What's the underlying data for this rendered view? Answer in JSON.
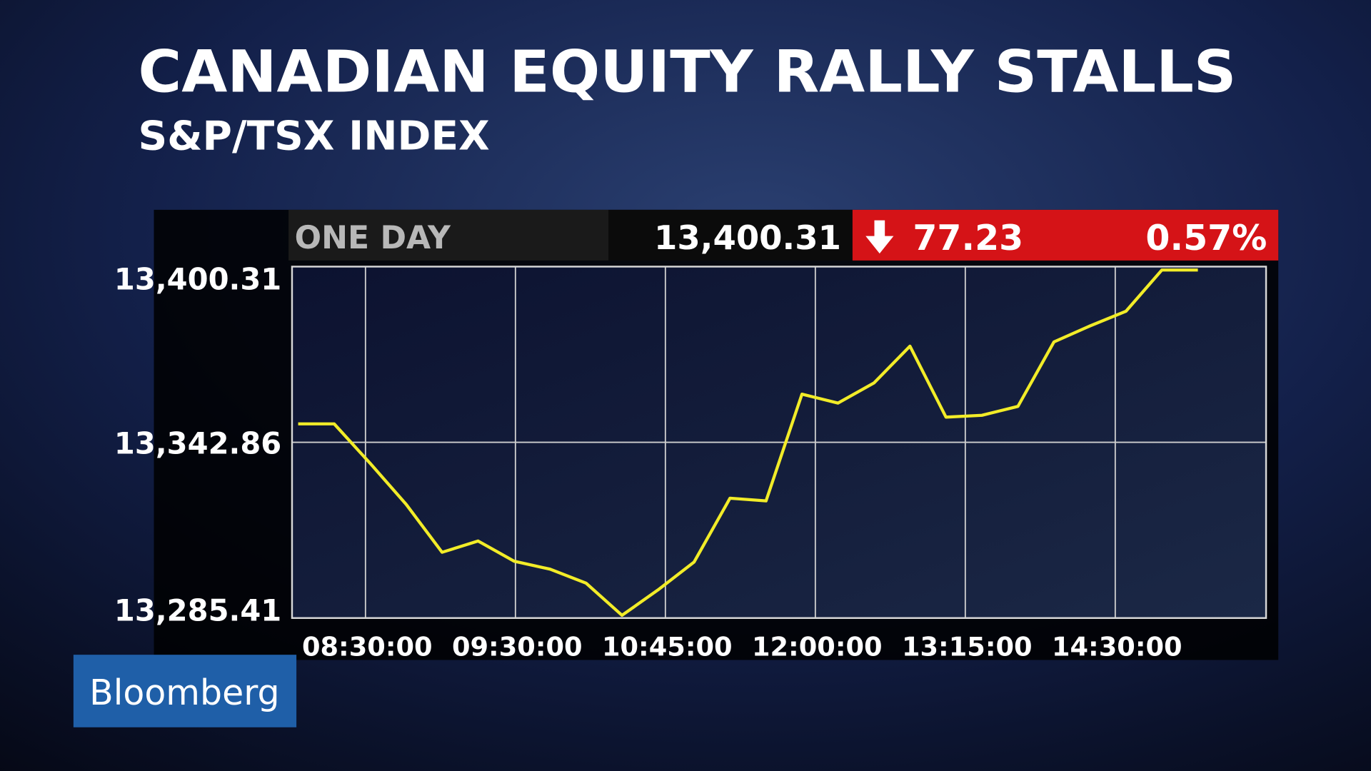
{
  "chart_data": {
    "type": "line",
    "title": "CANADIAN EQUITY RALLY STALLS",
    "subtitle": "S&P/TSX INDEX",
    "period": "ONE DAY",
    "last": "13,400.31",
    "change": "77.23",
    "change_pct": "0.57%",
    "logo": "Bloomberg",
    "color": "#f2ec28",
    "values": [
      13348.9,
      13348.9,
      13336.0,
      13322.6,
      13306.9,
      13310.6,
      13304.0,
      13301.4,
      13296.8,
      13286.3,
      13294.6,
      13303.7,
      13324.6,
      13323.7,
      13358.6,
      13355.7,
      13362.3,
      13374.3,
      13351.1,
      13351.7,
      13354.6,
      13375.7,
      13380.9,
      13385.7,
      13399.2,
      13399.2
    ],
    "ylim": [
      13285.41,
      13400.31
    ],
    "yticks": [
      {
        "value": 13285.41,
        "label": "13,285.41"
      },
      {
        "value": 13342.86,
        "label": "13,342.86"
      },
      {
        "value": 13400.31,
        "label": "13,400.31"
      }
    ],
    "xticks": [
      "08:30:00",
      "09:30:00",
      "10:45:00",
      "12:00:00",
      "13:15:00",
      "14:30:00"
    ],
    "grid": true
  }
}
